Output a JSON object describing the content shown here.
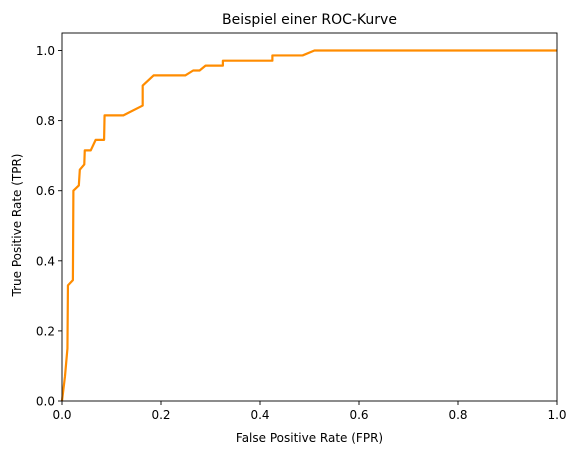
{
  "chart_data": {
    "type": "line",
    "title": "Beispiel einer ROC-Kurve",
    "xlabel": "False Positive Rate (FPR)",
    "ylabel": "True Positive Rate (TPR)",
    "xlim": [
      0,
      1
    ],
    "ylim": [
      0,
      1.05
    ],
    "grid": false,
    "x_ticks": [
      0.0,
      0.2,
      0.4,
      0.6,
      0.8,
      1.0
    ],
    "x_tick_labels": [
      "0.0",
      "0.2",
      "0.4",
      "0.6",
      "0.8",
      "1.0"
    ],
    "y_ticks": [
      0.0,
      0.2,
      0.4,
      0.6,
      0.8,
      1.0
    ],
    "y_tick_labels": [
      "0.0",
      "0.2",
      "0.4",
      "0.6",
      "0.8",
      "1.0"
    ],
    "series": [
      {
        "color": "#ff8c00",
        "points": [
          [
            0.0,
            0.0
          ],
          [
            0.006,
            0.07
          ],
          [
            0.011,
            0.15
          ],
          [
            0.012,
            0.33
          ],
          [
            0.022,
            0.345
          ],
          [
            0.023,
            0.6
          ],
          [
            0.034,
            0.615
          ],
          [
            0.036,
            0.66
          ],
          [
            0.045,
            0.675
          ],
          [
            0.046,
            0.715
          ],
          [
            0.058,
            0.715
          ],
          [
            0.068,
            0.745
          ],
          [
            0.085,
            0.745
          ],
          [
            0.086,
            0.815
          ],
          [
            0.124,
            0.815
          ],
          [
            0.163,
            0.843
          ],
          [
            0.163,
            0.9
          ],
          [
            0.185,
            0.929
          ],
          [
            0.249,
            0.929
          ],
          [
            0.265,
            0.943
          ],
          [
            0.278,
            0.943
          ],
          [
            0.29,
            0.957
          ],
          [
            0.325,
            0.957
          ],
          [
            0.325,
            0.971
          ],
          [
            0.425,
            0.971
          ],
          [
            0.425,
            0.986
          ],
          [
            0.486,
            0.986
          ],
          [
            0.51,
            1.0
          ],
          [
            1.0,
            1.0
          ]
        ]
      }
    ]
  }
}
